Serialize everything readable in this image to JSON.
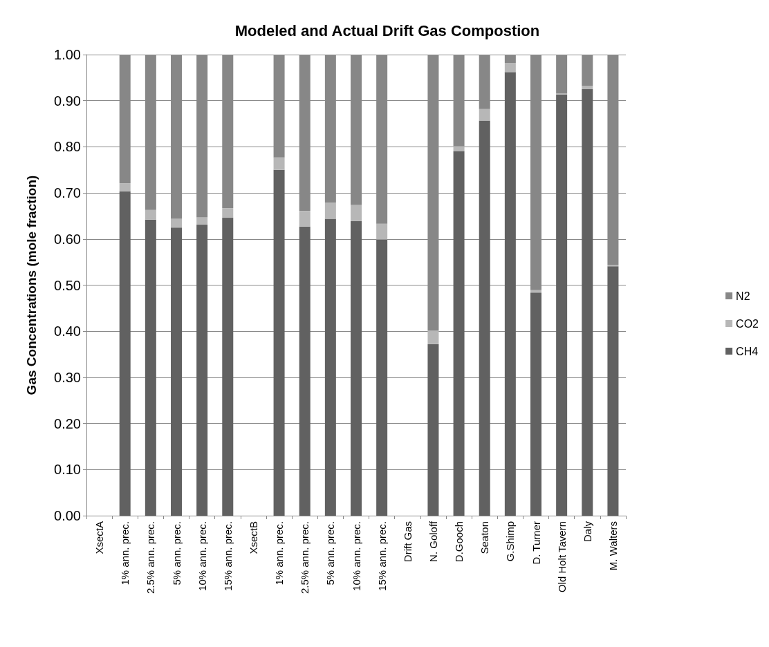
{
  "chart_data": {
    "type": "bar",
    "title": "Modeled and Actual Drift Gas Compostion",
    "ylabel": "Gas Concentrations (mole fraction)",
    "categories": [
      "XsectA",
      "1% ann. prec.",
      "2.5% ann. prec.",
      "5% ann. prec.",
      "10% ann. prec.",
      "15% ann. prec.",
      "XsectB",
      "1% ann. prec.",
      "2.5% ann. prec.",
      "5% ann. prec.",
      "10% ann. prec.",
      "15% ann. prec.",
      "Drift Gas",
      "N. Goloff",
      "D.Gooch",
      "Seaton",
      "G.Shimp",
      "D. Turner",
      "Old Holt Tavern",
      "Daly",
      "M. Walters"
    ],
    "stacked": true,
    "series": [
      {
        "name": "CH4",
        "color": "#616161",
        "values": [
          null,
          0.703,
          0.642,
          0.625,
          0.631,
          0.646,
          null,
          0.75,
          0.627,
          0.644,
          0.639,
          0.599,
          null,
          0.372,
          0.791,
          0.857,
          0.962,
          0.484,
          0.913,
          0.925,
          0.541
        ]
      },
      {
        "name": "CO2",
        "color": "#b7b7b7",
        "values": [
          null,
          0.018,
          0.021,
          0.019,
          0.016,
          0.021,
          null,
          0.027,
          0.034,
          0.035,
          0.035,
          0.034,
          null,
          0.029,
          0.01,
          0.025,
          0.02,
          0.005,
          0.003,
          0.007,
          0.003
        ]
      },
      {
        "name": "N2",
        "color": "#878787",
        "values": [
          null,
          0.279,
          0.337,
          0.356,
          0.353,
          0.333,
          null,
          0.223,
          0.339,
          0.321,
          0.326,
          0.367,
          null,
          0.599,
          0.199,
          0.118,
          0.018,
          0.511,
          0.084,
          0.068,
          0.456
        ]
      }
    ],
    "ylim": [
      0,
      1
    ],
    "yticks": [
      {
        "value": 0,
        "label": "0.00"
      },
      {
        "value": 0.1,
        "label": "0.10"
      },
      {
        "value": 0.2,
        "label": "0.20"
      },
      {
        "value": 0.3,
        "label": "0.30"
      },
      {
        "value": 0.4,
        "label": "0.40"
      },
      {
        "value": 0.5,
        "label": "0.50"
      },
      {
        "value": 0.6,
        "label": "0.60"
      },
      {
        "value": 0.7,
        "label": "0.70"
      },
      {
        "value": 0.8,
        "label": "0.80"
      },
      {
        "value": 0.9,
        "label": "0.90"
      },
      {
        "value": 1,
        "label": "1.00"
      }
    ],
    "grid": "y",
    "legend": "right"
  }
}
